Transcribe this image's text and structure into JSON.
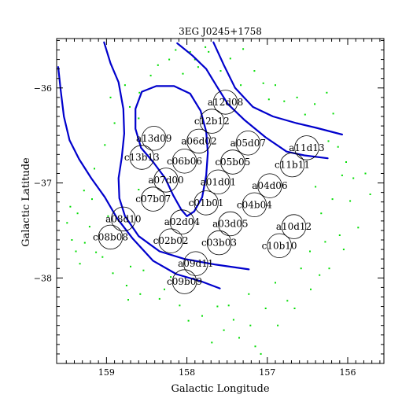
{
  "chart_data": {
    "type": "scatter",
    "title": "3EG J0245+1758",
    "xlabel": "Galactic Longitude",
    "ylabel": "Galactic Latitude",
    "xlim": [
      159.62,
      155.55
    ],
    "ylim": [
      -38.9,
      -35.48
    ],
    "x_reversed": true,
    "xticks": [
      159,
      158,
      157,
      156
    ],
    "yticks": [
      -36,
      -37,
      -38
    ],
    "grid": false,
    "legend": "none",
    "colors": {
      "points": "#00dd00",
      "contours": "#0000cc",
      "frame": "#000000",
      "circles": "#000000"
    },
    "field_radius_deg": 0.15,
    "fields": [
      {
        "label": "a12d08",
        "x": 157.52,
        "y": -36.15
      },
      {
        "label": "c12b12",
        "x": 157.69,
        "y": -36.35
      },
      {
        "label": "a13d09",
        "x": 158.41,
        "y": -36.53
      },
      {
        "label": "a06d02",
        "x": 157.85,
        "y": -36.56
      },
      {
        "label": "a05d07",
        "x": 157.24,
        "y": -36.58
      },
      {
        "label": "a11d13",
        "x": 156.51,
        "y": -36.63
      },
      {
        "label": "c13b13",
        "x": 158.56,
        "y": -36.73
      },
      {
        "label": "c06b06",
        "x": 158.03,
        "y": -36.77
      },
      {
        "label": "c05b05",
        "x": 157.43,
        "y": -36.78
      },
      {
        "label": "c11b11",
        "x": 156.69,
        "y": -36.81
      },
      {
        "label": "a07d00",
        "x": 158.26,
        "y": -36.97
      },
      {
        "label": "a01d01",
        "x": 157.61,
        "y": -36.99
      },
      {
        "label": "a04d06",
        "x": 156.97,
        "y": -37.03
      },
      {
        "label": "c07b07",
        "x": 158.42,
        "y": -37.17
      },
      {
        "label": "c01b01",
        "x": 157.76,
        "y": -37.21
      },
      {
        "label": "c04b04",
        "x": 157.16,
        "y": -37.23
      },
      {
        "label": "a08d10",
        "x": 158.79,
        "y": -37.38
      },
      {
        "label": "a02d04",
        "x": 158.06,
        "y": -37.41
      },
      {
        "label": "a03d05",
        "x": 157.46,
        "y": -37.43
      },
      {
        "label": "a10d12",
        "x": 156.67,
        "y": -37.46
      },
      {
        "label": "c08b08",
        "x": 158.95,
        "y": -37.57
      },
      {
        "label": "c02b02",
        "x": 158.2,
        "y": -37.61
      },
      {
        "label": "c03b03",
        "x": 157.6,
        "y": -37.63
      },
      {
        "label": "c10b10",
        "x": 156.85,
        "y": -37.66
      },
      {
        "label": "a09d11",
        "x": 157.89,
        "y": -37.85
      },
      {
        "label": "c09b09",
        "x": 158.03,
        "y": -38.04
      }
    ],
    "contours": [
      {
        "name": "",
        "points": [
          [
            159.6,
            -35.78
          ],
          [
            159.57,
            -36.02
          ],
          [
            159.53,
            -36.3
          ],
          [
            159.46,
            -36.55
          ],
          [
            159.34,
            -36.75
          ],
          [
            159.19,
            -36.95
          ],
          [
            159.02,
            -37.15
          ],
          [
            158.87,
            -37.37
          ],
          [
            158.68,
            -37.58
          ],
          [
            158.42,
            -37.82
          ],
          [
            158.13,
            -37.96
          ],
          [
            157.81,
            -38.04
          ],
          [
            157.59,
            -38.11
          ]
        ]
      },
      {
        "name": "",
        "points": [
          [
            159.03,
            -35.52
          ],
          [
            158.95,
            -35.74
          ],
          [
            158.85,
            -35.94
          ],
          [
            158.79,
            -36.22
          ],
          [
            158.78,
            -36.48
          ],
          [
            158.81,
            -36.73
          ],
          [
            158.85,
            -36.95
          ],
          [
            158.84,
            -37.16
          ],
          [
            158.77,
            -37.35
          ],
          [
            158.6,
            -37.56
          ],
          [
            158.34,
            -37.72
          ],
          [
            158.03,
            -37.8
          ],
          [
            157.64,
            -37.86
          ],
          [
            157.23,
            -37.91
          ]
        ]
      },
      {
        "name": "",
        "points": [
          [
            158.0,
            -37.35
          ],
          [
            158.07,
            -37.28
          ],
          [
            158.17,
            -37.13
          ],
          [
            158.27,
            -36.95
          ],
          [
            158.42,
            -36.78
          ],
          [
            158.57,
            -36.63
          ],
          [
            158.64,
            -36.43
          ],
          [
            158.64,
            -36.22
          ],
          [
            158.56,
            -36.04
          ],
          [
            158.38,
            -35.98
          ],
          [
            158.16,
            -35.98
          ],
          [
            157.96,
            -36.06
          ],
          [
            157.83,
            -36.24
          ],
          [
            157.76,
            -36.46
          ],
          [
            157.74,
            -36.68
          ],
          [
            157.76,
            -36.92
          ],
          [
            157.81,
            -37.15
          ],
          [
            157.91,
            -37.3
          ],
          [
            158.0,
            -37.35
          ]
        ]
      },
      {
        "name": "",
        "points": [
          [
            158.12,
            -35.53
          ],
          [
            157.93,
            -35.66
          ],
          [
            157.76,
            -35.8
          ],
          [
            157.63,
            -35.98
          ],
          [
            157.49,
            -36.17
          ],
          [
            157.28,
            -36.34
          ],
          [
            157.02,
            -36.52
          ],
          [
            156.76,
            -36.67
          ],
          [
            156.54,
            -36.71
          ],
          [
            156.25,
            -36.74
          ]
        ]
      },
      {
        "name": "",
        "points": [
          [
            157.67,
            -35.52
          ],
          [
            157.54,
            -35.76
          ],
          [
            157.4,
            -36.0
          ],
          [
            157.18,
            -36.2
          ],
          [
            156.93,
            -36.3
          ],
          [
            156.64,
            -36.37
          ],
          [
            156.39,
            -36.42
          ],
          [
            156.07,
            -36.49
          ]
        ]
      }
    ],
    "points": [
      [
        159.43,
        -37.6
      ],
      [
        159.21,
        -37.46
      ],
      [
        159.36,
        -37.32
      ],
      [
        159.05,
        -37.78
      ],
      [
        159.28,
        -37.08
      ],
      [
        159.45,
        -37.25
      ],
      [
        158.92,
        -37.95
      ],
      [
        158.75,
        -38.08
      ],
      [
        158.58,
        -38.17
      ],
      [
        158.34,
        -38.22
      ],
      [
        158.09,
        -38.29
      ],
      [
        157.81,
        -38.4
      ],
      [
        157.54,
        -38.55
      ],
      [
        157.35,
        -38.63
      ],
      [
        157.15,
        -38.72
      ],
      [
        157.08,
        -38.8
      ],
      [
        156.87,
        -38.5
      ],
      [
        156.66,
        -38.32
      ],
      [
        156.46,
        -38.12
      ],
      [
        156.23,
        -37.9
      ],
      [
        156.05,
        -37.7
      ],
      [
        155.87,
        -37.47
      ],
      [
        155.97,
        -37.19
      ],
      [
        156.07,
        -36.92
      ],
      [
        156.24,
        -36.56
      ],
      [
        155.78,
        -36.9
      ],
      [
        155.72,
        -37.12
      ],
      [
        156.1,
        -37.55
      ],
      [
        156.35,
        -37.97
      ],
      [
        156.75,
        -38.24
      ],
      [
        157.21,
        -38.5
      ],
      [
        157.62,
        -38.3
      ],
      [
        158.28,
        -38.12
      ],
      [
        158.54,
        -37.92
      ],
      [
        158.73,
        -38.23
      ],
      [
        159.13,
        -37.73
      ],
      [
        159.33,
        -37.85
      ],
      [
        159.49,
        -37.42
      ],
      [
        159.18,
        -37.17
      ],
      [
        158.71,
        -36.2
      ],
      [
        158.45,
        -35.87
      ],
      [
        158.22,
        -35.7
      ],
      [
        157.96,
        -35.62
      ],
      [
        157.77,
        -35.57
      ],
      [
        157.46,
        -35.69
      ],
      [
        157.16,
        -35.82
      ],
      [
        156.9,
        -35.97
      ],
      [
        156.63,
        -36.1
      ],
      [
        156.41,
        -36.17
      ],
      [
        156.18,
        -36.27
      ],
      [
        157.86,
        -35.78
      ],
      [
        157.69,
        -35.9
      ],
      [
        157.73,
        -35.62
      ],
      [
        158.05,
        -35.85
      ],
      [
        158.59,
        -36.05
      ],
      [
        158.9,
        -36.37
      ],
      [
        159.02,
        -36.6
      ],
      [
        159.15,
        -36.85
      ],
      [
        157.05,
        -35.95
      ],
      [
        156.79,
        -36.14
      ],
      [
        156.26,
        -36.05
      ],
      [
        158.36,
        -35.76
      ],
      [
        158.6,
        -36.32
      ],
      [
        157.58,
        -35.82
      ],
      [
        156.53,
        -36.28
      ],
      [
        156.12,
        -36.62
      ],
      [
        156.02,
        -36.78
      ],
      [
        155.93,
        -36.95
      ],
      [
        156.33,
        -37.32
      ],
      [
        156.47,
        -37.72
      ],
      [
        156.9,
        -38.05
      ],
      [
        157.23,
        -38.17
      ],
      [
        157.48,
        -38.29
      ],
      [
        158.7,
        -37.88
      ],
      [
        158.2,
        -37.99
      ],
      [
        156.58,
        -37.9
      ],
      [
        156.28,
        -37.62
      ],
      [
        156.4,
        -37.04
      ],
      [
        156.19,
        -37.17
      ],
      [
        157.98,
        -38.45
      ],
      [
        157.69,
        -38.68
      ],
      [
        157.42,
        -38.44
      ],
      [
        157.02,
        -38.32
      ],
      [
        159.27,
        -37.63
      ],
      [
        159.38,
        -37.72
      ],
      [
        158.98,
        -37.35
      ],
      [
        158.6,
        -37.07
      ],
      [
        158.95,
        -36.1
      ],
      [
        158.77,
        -35.97
      ],
      [
        157.33,
        -35.97
      ],
      [
        156.98,
        -36.12
      ],
      [
        158.14,
        -35.6
      ],
      [
        157.9,
        -35.7
      ],
      [
        157.3,
        -35.59
      ]
    ]
  }
}
